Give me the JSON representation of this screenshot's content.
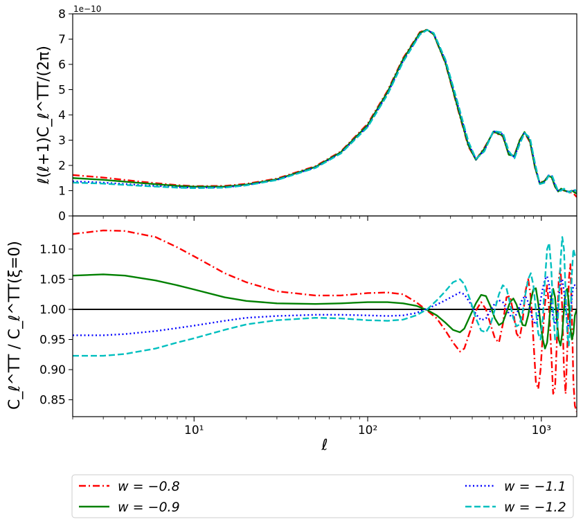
{
  "chart_data": [
    {
      "type": "line",
      "panel": "top",
      "ylabel": "ℓ(ℓ+1)C_ℓ^TT/(2π)",
      "offset_text": "1e−10",
      "xscale": "log",
      "xlim": [
        2,
        1600
      ],
      "ylim": [
        0,
        8
      ],
      "yticks": [
        "0",
        "1",
        "2",
        "3",
        "4",
        "5",
        "6",
        "7",
        "8"
      ],
      "grid": false,
      "series": [
        {
          "name": "w = −0.8",
          "color": "#ff0000",
          "style": "dashdot",
          "x": [
            2,
            3,
            5,
            8,
            10,
            15,
            20,
            30,
            50,
            70,
            100,
            130,
            160,
            200,
            220,
            240,
            280,
            330,
            380,
            420,
            470,
            530,
            600,
            650,
            700,
            750,
            800,
            860,
            920,
            980,
            1050,
            1100,
            1150,
            1200,
            1250,
            1300,
            1350,
            1400,
            1450,
            1500,
            1550,
            1600
          ],
          "y": [
            1.62,
            1.52,
            1.35,
            1.22,
            1.18,
            1.19,
            1.27,
            1.48,
            1.97,
            2.55,
            3.65,
            4.95,
            6.25,
            7.28,
            7.38,
            7.18,
            6.05,
            4.25,
            2.75,
            2.23,
            2.7,
            3.32,
            3.15,
            2.42,
            2.4,
            3.0,
            3.3,
            2.92,
            1.9,
            1.3,
            1.42,
            1.58,
            1.5,
            1.15,
            0.98,
            1.06,
            1.0,
            0.98,
            0.94,
            0.92,
            0.85,
            0.75
          ]
        },
        {
          "name": "w = −0.9",
          "color": "#008000",
          "style": "solid",
          "x": [
            2,
            3,
            5,
            8,
            10,
            15,
            20,
            30,
            50,
            70,
            100,
            130,
            160,
            200,
            220,
            240,
            280,
            330,
            380,
            420,
            470,
            530,
            600,
            650,
            700,
            750,
            800,
            860,
            920,
            980,
            1050,
            1100,
            1150,
            1200,
            1250,
            1300,
            1350,
            1400,
            1450,
            1500,
            1550,
            1600
          ],
          "y": [
            1.5,
            1.43,
            1.3,
            1.19,
            1.16,
            1.16,
            1.24,
            1.45,
            1.94,
            2.52,
            3.6,
            4.9,
            6.2,
            7.25,
            7.37,
            7.19,
            6.08,
            4.3,
            2.8,
            2.22,
            2.66,
            3.34,
            3.18,
            2.42,
            2.38,
            2.98,
            3.32,
            2.96,
            1.92,
            1.28,
            1.4,
            1.6,
            1.52,
            1.16,
            0.97,
            1.08,
            1.02,
            0.97,
            0.96,
            1.0,
            0.94,
            0.88
          ]
        },
        {
          "name": "w = −1.1",
          "color": "#0000ff",
          "style": "dotted",
          "x": [
            2,
            3,
            5,
            8,
            10,
            15,
            20,
            30,
            50,
            70,
            100,
            130,
            160,
            200,
            220,
            240,
            280,
            330,
            380,
            420,
            470,
            530,
            600,
            650,
            700,
            750,
            800,
            860,
            920,
            980,
            1050,
            1100,
            1150,
            1200,
            1250,
            1300,
            1350,
            1400,
            1450,
            1500,
            1550,
            1600
          ],
          "y": [
            1.37,
            1.32,
            1.22,
            1.14,
            1.12,
            1.13,
            1.22,
            1.43,
            1.92,
            2.49,
            3.55,
            4.84,
            6.13,
            7.2,
            7.36,
            7.22,
            6.15,
            4.4,
            2.88,
            2.24,
            2.6,
            3.36,
            3.24,
            2.5,
            2.32,
            2.9,
            3.3,
            3.04,
            2.0,
            1.26,
            1.36,
            1.6,
            1.58,
            1.22,
            0.97,
            1.04,
            1.06,
            0.98,
            0.94,
            1.02,
            1.0,
            0.92
          ]
        },
        {
          "name": "w = −1.2",
          "color": "#00bfbf",
          "style": "dashed",
          "x": [
            2,
            3,
            5,
            8,
            10,
            15,
            20,
            30,
            50,
            70,
            100,
            130,
            160,
            200,
            220,
            240,
            280,
            330,
            380,
            420,
            470,
            530,
            600,
            650,
            700,
            750,
            800,
            860,
            920,
            980,
            1050,
            1100,
            1150,
            1200,
            1250,
            1300,
            1350,
            1400,
            1450,
            1500,
            1550,
            1600
          ],
          "y": [
            1.32,
            1.28,
            1.19,
            1.12,
            1.1,
            1.12,
            1.21,
            1.42,
            1.9,
            2.47,
            3.52,
            4.8,
            6.1,
            7.18,
            7.36,
            7.24,
            6.2,
            4.48,
            2.95,
            2.26,
            2.56,
            3.36,
            3.3,
            2.56,
            2.28,
            2.84,
            3.28,
            3.1,
            2.08,
            1.26,
            1.32,
            1.58,
            1.62,
            1.28,
            0.98,
            1.0,
            1.08,
            1.02,
            0.92,
            1.0,
            1.05,
            0.96
          ]
        }
      ]
    },
    {
      "type": "line",
      "panel": "bottom",
      "ylabel": "C_ℓ^TT / C_ℓ^TT(ξ=0)",
      "xlabel": "ℓ",
      "xscale": "log",
      "xlim": [
        2,
        1600
      ],
      "ylim": [
        0.822,
        1.155
      ],
      "xticks": [
        {
          "value": 10,
          "label": "10¹"
        },
        {
          "value": 100,
          "label": "10²"
        },
        {
          "value": 1000,
          "label": "10³"
        }
      ],
      "yticks": [
        "0.85",
        "0.90",
        "0.95",
        "1.00",
        "1.05",
        "1.10"
      ],
      "reference_line": 1.0,
      "grid": false,
      "series": [
        {
          "name": "w = −0.8",
          "color": "#ff0000",
          "style": "dashdot",
          "x": [
            2,
            3,
            4,
            6,
            8,
            10,
            15,
            20,
            30,
            50,
            70,
            100,
            130,
            160,
            190,
            220,
            250,
            280,
            310,
            340,
            360,
            390,
            420,
            450,
            480,
            510,
            540,
            570,
            600,
            630,
            660,
            690,
            720,
            750,
            780,
            810,
            840,
            870,
            900,
            930,
            960,
            990,
            1020,
            1050,
            1080,
            1110,
            1140,
            1170,
            1200,
            1230,
            1260,
            1290,
            1320,
            1350,
            1380,
            1410,
            1440,
            1470,
            1500,
            1530,
            1560,
            1600
          ],
          "y": [
            1.125,
            1.131,
            1.13,
            1.12,
            1.103,
            1.088,
            1.06,
            1.045,
            1.03,
            1.023,
            1.023,
            1.027,
            1.028,
            1.025,
            1.012,
            0.998,
            0.985,
            0.965,
            0.945,
            0.93,
            0.935,
            0.965,
            0.998,
            1.012,
            1.0,
            0.975,
            0.952,
            0.945,
            0.975,
            1.02,
            1.022,
            0.995,
            0.96,
            0.952,
            0.98,
            1.03,
            1.05,
            1.02,
            0.95,
            0.88,
            0.868,
            0.9,
            0.96,
            1.01,
            1.04,
            1.0,
            0.93,
            0.86,
            0.87,
            0.95,
            1.05,
            1.07,
            1.0,
            0.9,
            0.86,
            0.93,
            1.05,
            1.075,
            0.99,
            0.88,
            0.84,
            0.83
          ]
        },
        {
          "name": "w = −0.9",
          "color": "#008000",
          "style": "solid",
          "x": [
            2,
            3,
            4,
            6,
            8,
            10,
            15,
            20,
            30,
            50,
            70,
            100,
            130,
            160,
            190,
            220,
            250,
            280,
            310,
            340,
            360,
            390,
            420,
            450,
            480,
            510,
            540,
            570,
            600,
            630,
            660,
            690,
            720,
            750,
            780,
            810,
            840,
            870,
            900,
            930,
            960,
            990,
            1020,
            1050,
            1080,
            1110,
            1140,
            1170,
            1200,
            1230,
            1260,
            1290,
            1320,
            1350,
            1380,
            1410,
            1440,
            1470,
            1500,
            1530,
            1560,
            1600
          ],
          "y": [
            1.056,
            1.058,
            1.056,
            1.048,
            1.04,
            1.033,
            1.02,
            1.014,
            1.01,
            1.009,
            1.01,
            1.012,
            1.012,
            1.01,
            1.006,
            0.999,
            0.99,
            0.978,
            0.966,
            0.962,
            0.968,
            0.99,
            1.01,
            1.024,
            1.022,
            1.005,
            0.985,
            0.974,
            0.978,
            0.995,
            1.012,
            1.018,
            1.008,
            0.99,
            0.974,
            0.973,
            0.99,
            1.015,
            1.033,
            1.035,
            1.01,
            0.975,
            0.95,
            0.935,
            0.945,
            0.98,
            1.02,
            1.034,
            1.02,
            0.98,
            0.95,
            0.94,
            0.96,
            1.0,
            1.03,
            1.034,
            1.01,
            0.97,
            0.95,
            0.96,
            0.99,
            1.0
          ]
        },
        {
          "name": "w = −1.1",
          "color": "#0000ff",
          "style": "dotted",
          "x": [
            2,
            3,
            4,
            6,
            8,
            10,
            15,
            20,
            30,
            50,
            70,
            100,
            130,
            160,
            190,
            220,
            250,
            280,
            310,
            340,
            360,
            390,
            420,
            450,
            480,
            510,
            540,
            570,
            600,
            630,
            660,
            690,
            720,
            750,
            780,
            810,
            840,
            870,
            900,
            930,
            960,
            990,
            1020,
            1050,
            1080,
            1110,
            1140,
            1170,
            1200,
            1230,
            1260,
            1290,
            1320,
            1350,
            1380,
            1410,
            1440,
            1470,
            1500,
            1530,
            1560,
            1600
          ],
          "y": [
            0.957,
            0.957,
            0.959,
            0.964,
            0.969,
            0.973,
            0.981,
            0.986,
            0.989,
            0.991,
            0.991,
            0.99,
            0.989,
            0.99,
            0.994,
            1.001,
            1.008,
            1.015,
            1.022,
            1.028,
            1.025,
            1.01,
            0.992,
            0.982,
            0.985,
            0.998,
            1.01,
            1.015,
            1.012,
            1.0,
            0.99,
            0.986,
            0.992,
            1.005,
            1.018,
            1.022,
            1.012,
            0.995,
            0.98,
            0.975,
            0.99,
            1.015,
            1.035,
            1.05,
            1.055,
            1.04,
            1.01,
            0.985,
            0.975,
            0.99,
            1.02,
            1.045,
            1.05,
            1.03,
            1.0,
            0.975,
            0.97,
            0.99,
            1.02,
            1.04,
            1.04,
            1.035
          ]
        },
        {
          "name": "w = −1.2",
          "color": "#00bfbf",
          "style": "dashed",
          "x": [
            2,
            3,
            4,
            6,
            8,
            10,
            15,
            20,
            30,
            50,
            70,
            100,
            130,
            160,
            190,
            220,
            250,
            280,
            310,
            340,
            360,
            390,
            420,
            450,
            480,
            510,
            540,
            570,
            600,
            630,
            660,
            690,
            720,
            750,
            780,
            810,
            840,
            870,
            900,
            930,
            960,
            990,
            1020,
            1050,
            1080,
            1110,
            1140,
            1170,
            1200,
            1230,
            1260,
            1290,
            1320,
            1350,
            1380,
            1410,
            1440,
            1470,
            1500,
            1530,
            1560,
            1600
          ],
          "y": [
            0.923,
            0.923,
            0.926,
            0.935,
            0.945,
            0.952,
            0.966,
            0.975,
            0.982,
            0.986,
            0.985,
            0.982,
            0.981,
            0.983,
            0.99,
            1.0,
            1.015,
            1.03,
            1.045,
            1.05,
            1.042,
            1.015,
            0.985,
            0.965,
            0.962,
            0.975,
            1.0,
            1.025,
            1.04,
            1.035,
            1.01,
            0.985,
            0.972,
            0.975,
            0.995,
            1.025,
            1.05,
            1.06,
            1.04,
            1.0,
            0.96,
            0.95,
            0.985,
            1.05,
            1.1,
            1.11,
            1.07,
            1.0,
            0.95,
            0.955,
            1.01,
            1.08,
            1.12,
            1.1,
            1.03,
            0.96,
            0.94,
            0.98,
            1.06,
            1.1,
            1.09,
            1.095
          ]
        }
      ]
    }
  ],
  "legend": {
    "placement": "bottom",
    "columns": 2,
    "entries": [
      {
        "label": "w = −0.8",
        "color": "#ff0000",
        "style": "dashdot"
      },
      {
        "label": "w = −0.9",
        "color": "#008000",
        "style": "solid"
      },
      {
        "label": "w = −1.1",
        "color": "#0000ff",
        "style": "dotted"
      },
      {
        "label": "w = −1.2",
        "color": "#00bfbf",
        "style": "dashed"
      }
    ]
  }
}
